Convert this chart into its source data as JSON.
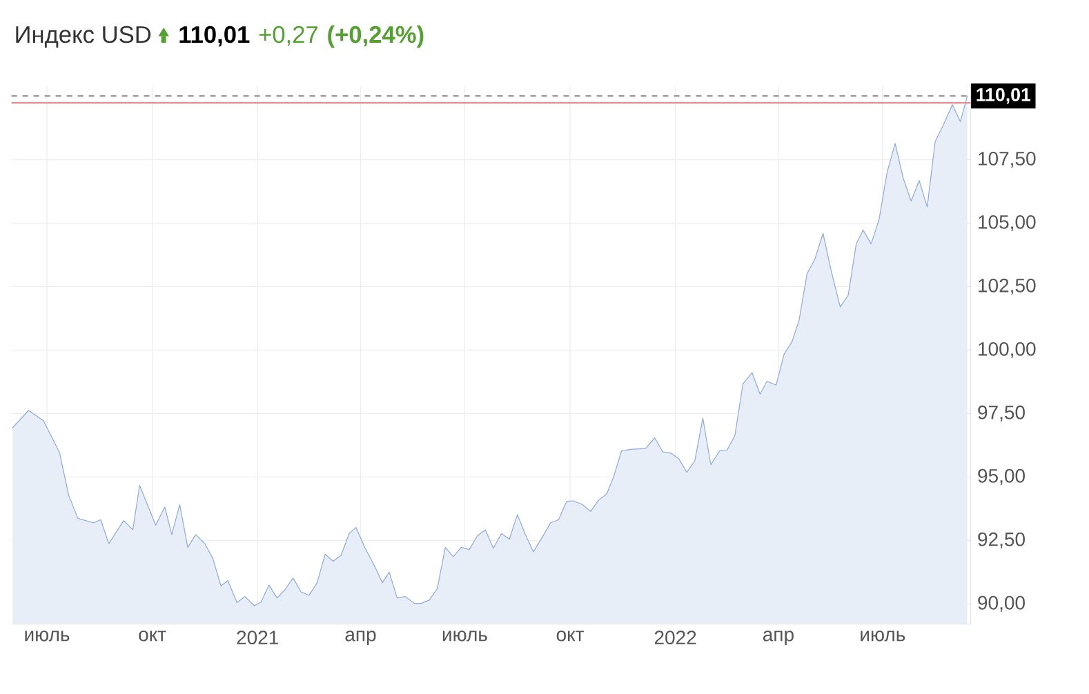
{
  "chart_data": {
    "type": "area",
    "title": "Индекс USD",
    "annotations": [
      "110,01",
      "+0,27",
      "(+0,24%)"
    ],
    "xlim": [
      "2020-05-31",
      "2022-09-16"
    ],
    "ylim": [
      89.2,
      110.4
    ],
    "xticks": [
      {
        "value": "2020-07-01",
        "label": "июль"
      },
      {
        "value": "2020-10-01",
        "label": "окт"
      },
      {
        "value": "2021-01-01",
        "label": "2021"
      },
      {
        "value": "2021-04-01",
        "label": "апр"
      },
      {
        "value": "2021-07-01",
        "label": "июль"
      },
      {
        "value": "2021-10-01",
        "label": "окт"
      },
      {
        "value": "2022-01-01",
        "label": "2022"
      },
      {
        "value": "2022-04-01",
        "label": "апр"
      },
      {
        "value": "2022-07-01",
        "label": "июль"
      }
    ],
    "yticks": [
      {
        "value": 90,
        "label": "90,00"
      },
      {
        "value": 92.5,
        "label": "92,50"
      },
      {
        "value": 95,
        "label": "95,00"
      },
      {
        "value": 97.5,
        "label": "97,50"
      },
      {
        "value": 100,
        "label": "100,00"
      },
      {
        "value": 102.5,
        "label": "102,50"
      },
      {
        "value": 105,
        "label": "105,00"
      },
      {
        "value": 107.5,
        "label": "107,50"
      }
    ],
    "grid": true,
    "marker": "none",
    "line_style": "solid",
    "ref_lines": [
      {
        "axis": "y",
        "value": 110.01,
        "label": "110,01",
        "color": "#999999",
        "line_style": "dashed"
      },
      {
        "axis": "y",
        "value": 109.74,
        "color": "#e09090",
        "line_style": "solid"
      }
    ],
    "series": [
      {
        "color": "#8eaad8",
        "x": [
          "2020-06-01",
          "2020-06-15",
          "2020-06-28",
          "2020-07-12",
          "2020-07-20",
          "2020-07-28",
          "2020-08-11",
          "2020-08-17",
          "2020-08-24",
          "2020-09-06",
          "2020-09-14",
          "2020-09-20",
          "2020-10-04",
          "2020-10-12",
          "2020-10-18",
          "2020-10-25",
          "2020-11-01",
          "2020-11-08",
          "2020-11-16",
          "2020-11-23",
          "2020-11-30",
          "2020-12-06",
          "2020-12-14",
          "2020-12-21",
          "2020-12-29",
          "2021-01-04",
          "2021-01-11",
          "2021-01-18",
          "2021-01-25",
          "2021-02-01",
          "2021-02-08",
          "2021-02-15",
          "2021-02-22",
          "2021-03-01",
          "2021-03-08",
          "2021-03-15",
          "2021-03-22",
          "2021-03-28",
          "2021-04-05",
          "2021-04-13",
          "2021-04-20",
          "2021-04-26",
          "2021-05-03",
          "2021-05-10",
          "2021-05-18",
          "2021-05-24",
          "2021-05-31",
          "2021-06-07",
          "2021-06-14",
          "2021-06-21",
          "2021-06-28",
          "2021-07-05",
          "2021-07-12",
          "2021-07-19",
          "2021-07-26",
          "2021-08-02",
          "2021-08-09",
          "2021-08-16",
          "2021-08-23",
          "2021-08-30",
          "2021-09-07",
          "2021-09-14",
          "2021-09-21",
          "2021-09-28",
          "2021-10-04",
          "2021-10-12",
          "2021-10-19",
          "2021-10-26",
          "2021-11-02",
          "2021-11-08",
          "2021-11-15",
          "2021-11-23",
          "2021-12-06",
          "2021-12-14",
          "2021-12-21",
          "2021-12-28",
          "2022-01-04",
          "2022-01-11",
          "2022-01-18",
          "2022-01-25",
          "2022-02-01",
          "2022-02-09",
          "2022-02-15",
          "2022-02-22",
          "2022-03-01",
          "2022-03-09",
          "2022-03-16",
          "2022-03-22",
          "2022-03-30",
          "2022-04-06",
          "2022-04-13",
          "2022-04-19",
          "2022-04-26",
          "2022-05-03",
          "2022-05-10",
          "2022-05-17",
          "2022-05-25",
          "2022-06-01",
          "2022-06-08",
          "2022-06-14",
          "2022-06-21",
          "2022-06-28",
          "2022-07-05",
          "2022-07-12",
          "2022-07-19",
          "2022-07-26",
          "2022-08-02",
          "2022-08-09",
          "2022-08-16",
          "2022-08-23",
          "2022-08-31",
          "2022-09-07",
          "2022-09-13"
        ],
        "values": [
          96.94,
          97.62,
          97.21,
          95.96,
          94.28,
          93.37,
          93.19,
          93.32,
          92.37,
          93.28,
          92.92,
          94.67,
          93.1,
          93.82,
          92.73,
          93.91,
          92.23,
          92.73,
          92.37,
          91.78,
          90.71,
          90.92,
          90.05,
          90.29,
          89.93,
          90.07,
          90.74,
          90.23,
          90.56,
          91.02,
          90.47,
          90.34,
          90.83,
          91.96,
          91.68,
          91.92,
          92.77,
          93.01,
          92.19,
          91.51,
          90.83,
          91.25,
          90.23,
          90.29,
          90.02,
          90.02,
          90.15,
          90.6,
          92.23,
          91.86,
          92.23,
          92.14,
          92.68,
          92.92,
          92.19,
          92.77,
          92.55,
          93.52,
          92.73,
          92.05,
          92.65,
          93.19,
          93.32,
          94.04,
          94.06,
          93.91,
          93.64,
          94.09,
          94.33,
          95.0,
          96.03,
          96.09,
          96.12,
          96.54,
          95.99,
          95.94,
          95.72,
          95.18,
          95.64,
          97.32,
          95.48,
          96.05,
          96.05,
          96.63,
          98.66,
          99.11,
          98.26,
          98.77,
          98.62,
          99.84,
          100.34,
          101.16,
          103.0,
          103.6,
          104.6,
          103.15,
          101.7,
          102.16,
          104.18,
          104.73,
          104.18,
          105.15,
          107.01,
          108.14,
          106.78,
          105.87,
          106.68,
          105.64,
          108.22,
          108.86,
          109.67,
          109.0,
          110.01
        ]
      }
    ]
  }
}
